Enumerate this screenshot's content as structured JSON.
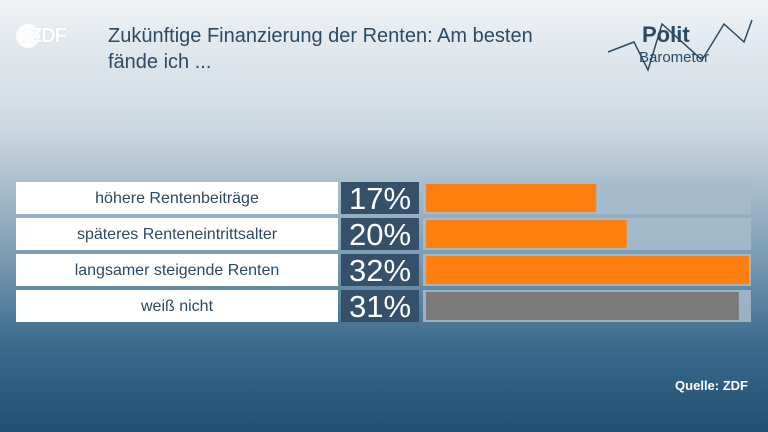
{
  "header": {
    "logo_text": "ZDF",
    "title": "Zukünftige Finanzierung der Renten: Am besten fände ich ...",
    "brand_top": "Polit",
    "brand_bottom": "Barometer"
  },
  "footer": {
    "source": "Quelle: ZDF"
  },
  "colors": {
    "accent": "#ff7f11",
    "neutral": "#7a7a7a",
    "label_bg": "#ffffff",
    "value_bg": "#35506a",
    "track_bg": "#a6bccb",
    "text": "#2c4a63"
  },
  "chart_data": {
    "type": "bar",
    "orientation": "horizontal",
    "categories": [
      "höhere Rentenbeiträge",
      "späteres Renteneintrittsalter",
      "langsamer steigende Renten",
      "weiß nicht"
    ],
    "values": [
      17,
      20,
      32,
      31
    ],
    "value_labels": [
      "17%",
      "20%",
      "32%",
      "31%"
    ],
    "unit": "%",
    "xlim": [
      0,
      32
    ],
    "grid": false
  }
}
